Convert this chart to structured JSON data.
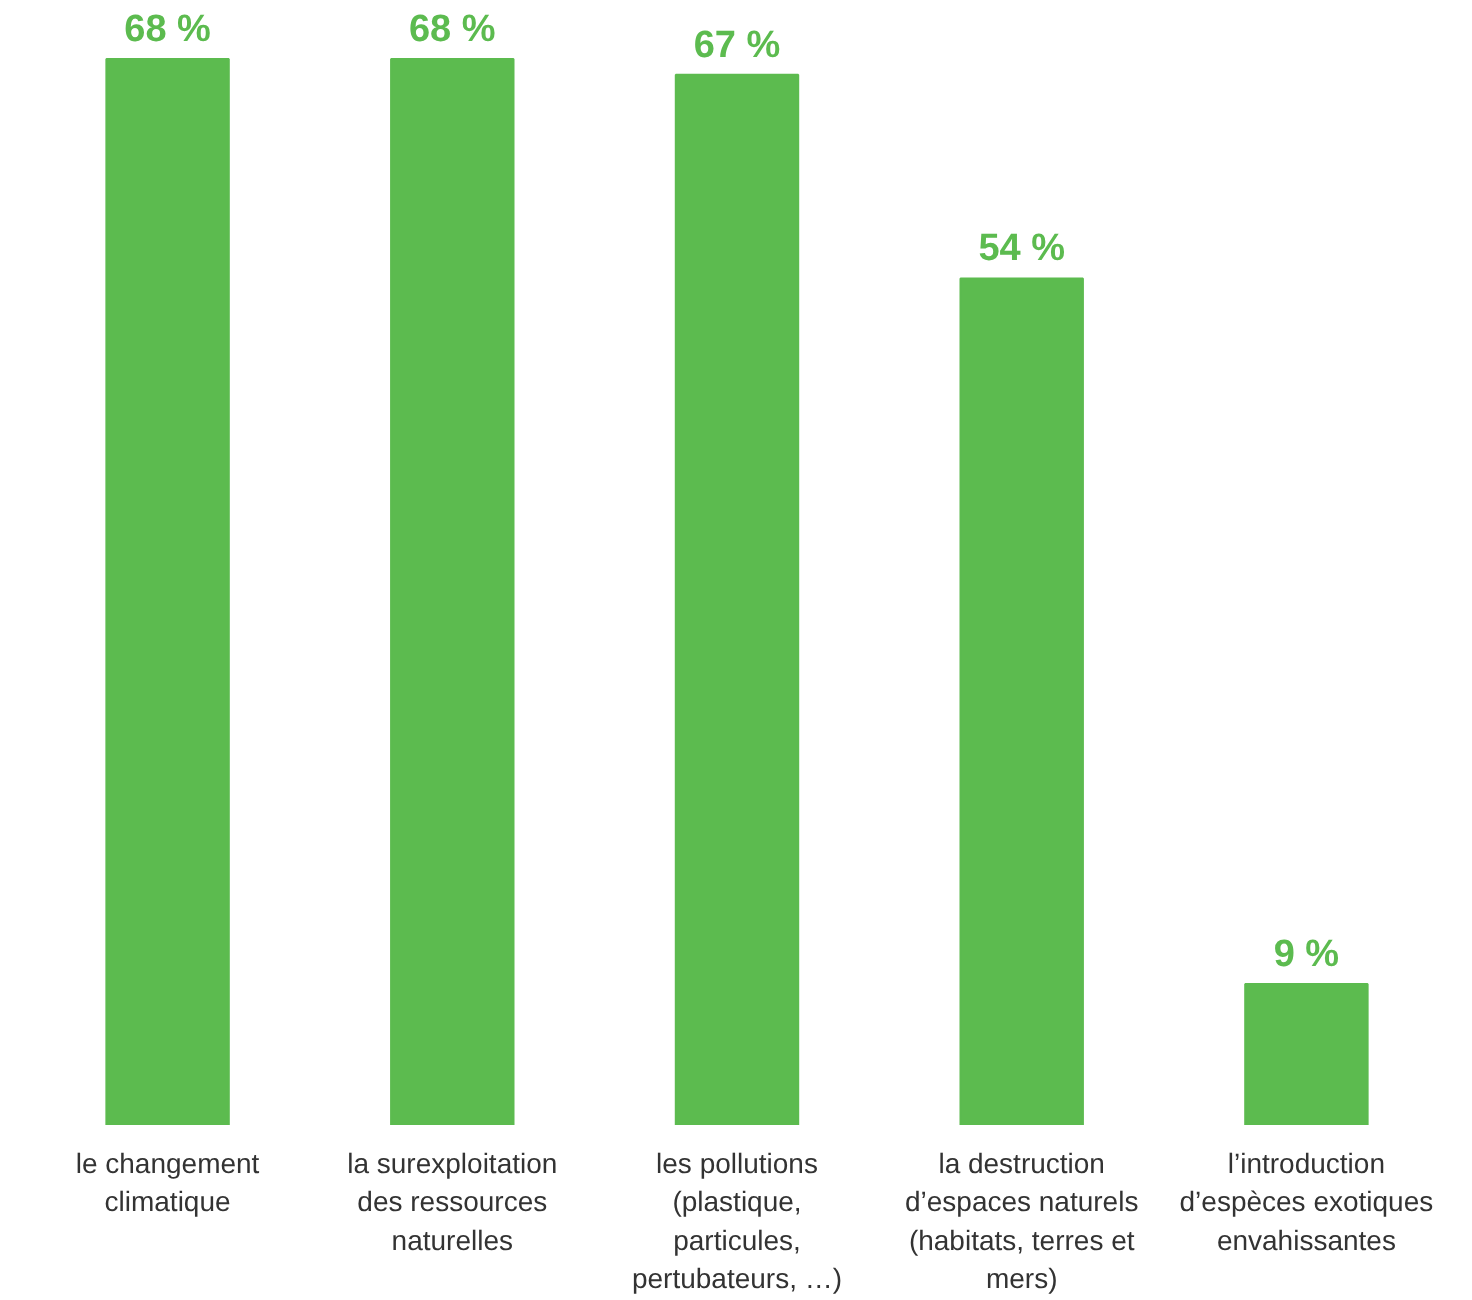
{
  "chart_data": {
    "type": "bar",
    "categories": [
      "le changement climatique",
      "la surexploitation des ressources naturelles",
      "les pollutions (plastique, particules, pertubateurs, …)",
      "la destruction d’espaces naturels (habitats, terres et mers)",
      "l’introduction d’espèces exotiques envahissantes"
    ],
    "values": [
      68,
      68,
      67,
      54,
      9
    ],
    "value_labels": [
      "68 %",
      "68 %",
      "67 %",
      "54 %",
      "9 %"
    ],
    "color": "#5cbb4f"
  }
}
